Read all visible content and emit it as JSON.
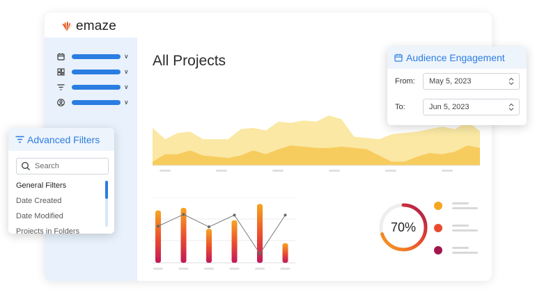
{
  "app": {
    "logo_text": "emaze"
  },
  "sidebar": {
    "items": [
      {
        "icon": "calendar-icon"
      },
      {
        "icon": "dashboard-icon"
      },
      {
        "icon": "filter-icon"
      },
      {
        "icon": "user-icon"
      }
    ]
  },
  "main": {
    "title": "All Projects"
  },
  "area_chart": {
    "series": [
      {
        "values": [
          6,
          4.2,
          5.2,
          5.4,
          4.2,
          4.2,
          4.2,
          5.8,
          6,
          5.6,
          7,
          6.8,
          7.2,
          7,
          8,
          7.4,
          4.6,
          4.4,
          4.2,
          5,
          5.2,
          5.4,
          5.8,
          6.2,
          5.8,
          7,
          5.5
        ],
        "color": "#fae8a4"
      },
      {
        "values": [
          0.6,
          1.8,
          1.8,
          2.4,
          1.6,
          1.4,
          1.2,
          1.6,
          2.4,
          1.8,
          2.6,
          3.2,
          3,
          2.8,
          2.8,
          3,
          2.8,
          2.6,
          1.6,
          0.6,
          0.6,
          1.4,
          2,
          1.8,
          2.2,
          3.2,
          2.8
        ],
        "color": "#f7cc5e"
      }
    ]
  },
  "bar_chart": {
    "bars": [
      0.8,
      0.84,
      0.52,
      0.65,
      0.9,
      0.3
    ],
    "line": [
      0.56,
      0.74,
      0.55,
      0.73,
      0.14,
      0.73
    ]
  },
  "donut": {
    "value_text": "70%",
    "value": 0.7
  },
  "legend": {
    "colors": [
      "#f5a623",
      "#e94b2e",
      "#a3154f"
    ]
  },
  "filters": {
    "title": "Advanced Filters",
    "search_placeholder": "Search",
    "items": [
      "General Filters",
      "Date Created",
      "Date Modified",
      "Projects in Folders"
    ]
  },
  "engagement": {
    "title": "Audience Engagement",
    "from_label": "From:",
    "from_value": "May 5, 2023",
    "to_label": "To:",
    "to_value": "Jun 5, 2023"
  }
}
